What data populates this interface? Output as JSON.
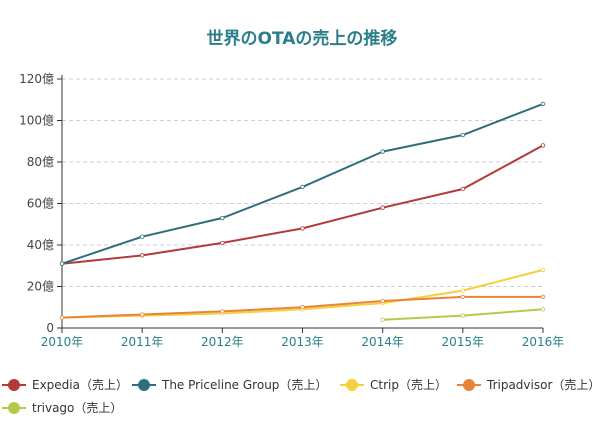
{
  "chart_data": {
    "type": "line",
    "title": "世界のOTAの売上の推移",
    "categories": [
      "2010年",
      "2011年",
      "2012年",
      "2013年",
      "2014年",
      "2015年",
      "2016年"
    ],
    "y_ticks": [
      "0",
      "20億",
      "40億",
      "60億",
      "80億",
      "100億",
      "120億"
    ],
    "ylim": [
      0,
      120
    ],
    "grid": true,
    "legend_position": "bottom",
    "series": [
      {
        "name": "Expedia（売上）",
        "color": "#b23a3a",
        "values": [
          31,
          35,
          41,
          48,
          58,
          67,
          88
        ]
      },
      {
        "name": "The Priceline Group（売上）",
        "color": "#2e6f7e",
        "values": [
          31,
          44,
          53,
          68,
          85,
          93,
          108
        ]
      },
      {
        "name": "Ctrip（売上）",
        "color": "#f2d23c",
        "values": [
          5,
          6,
          7,
          9,
          12,
          18,
          28
        ]
      },
      {
        "name": "Tripadvisor（売上）",
        "color": "#e8843a",
        "values": [
          5,
          6.5,
          8,
          10,
          13,
          15,
          15
        ]
      },
      {
        "name": "trivago（売上）",
        "color": "#b7c94a",
        "values": [
          null,
          null,
          null,
          null,
          4,
          6,
          9
        ]
      }
    ]
  }
}
